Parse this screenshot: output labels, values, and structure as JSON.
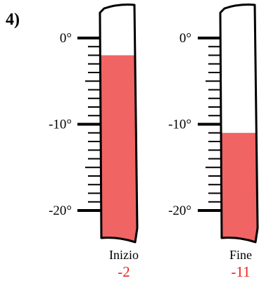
{
  "problem": {
    "number_label": "4)"
  },
  "scale": {
    "min": -20,
    "max": 0,
    "major_ticks": [
      0,
      -10,
      -20
    ],
    "major_labels": [
      "0°",
      "-10°",
      "-20°"
    ],
    "minor_step": 1
  },
  "thermometers": [
    {
      "caption": "Inizio",
      "reading_text": "-2",
      "reading_value": -2
    },
    {
      "caption": "Fine",
      "reading_text": "-11",
      "reading_value": -11
    }
  ],
  "colors": {
    "liquid": "#f06464",
    "reading_text": "#e8251f",
    "outline": "#000000"
  }
}
